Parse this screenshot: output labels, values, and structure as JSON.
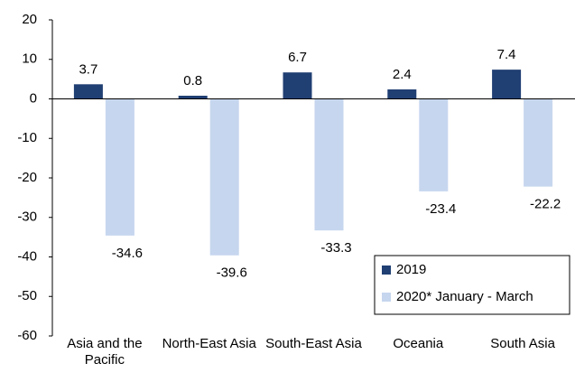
{
  "chart_data": {
    "type": "bar",
    "categories": [
      "Asia and the Pacific",
      "North-East Asia",
      "South-East Asia",
      "Oceania",
      "South Asia"
    ],
    "series": [
      {
        "name": "2019",
        "color": "#203f73",
        "values": [
          3.7,
          0.8,
          6.7,
          2.4,
          7.4
        ]
      },
      {
        "name": "2020* January - March",
        "color": "#c6d6ee",
        "values": [
          -34.6,
          -39.6,
          -33.3,
          -23.4,
          -22.2
        ]
      }
    ],
    "ylim": [
      -60,
      20
    ],
    "yticks": [
      -60,
      -50,
      -40,
      -30,
      -20,
      -10,
      0,
      10,
      20
    ],
    "grid": false,
    "legend": "lower-right"
  }
}
